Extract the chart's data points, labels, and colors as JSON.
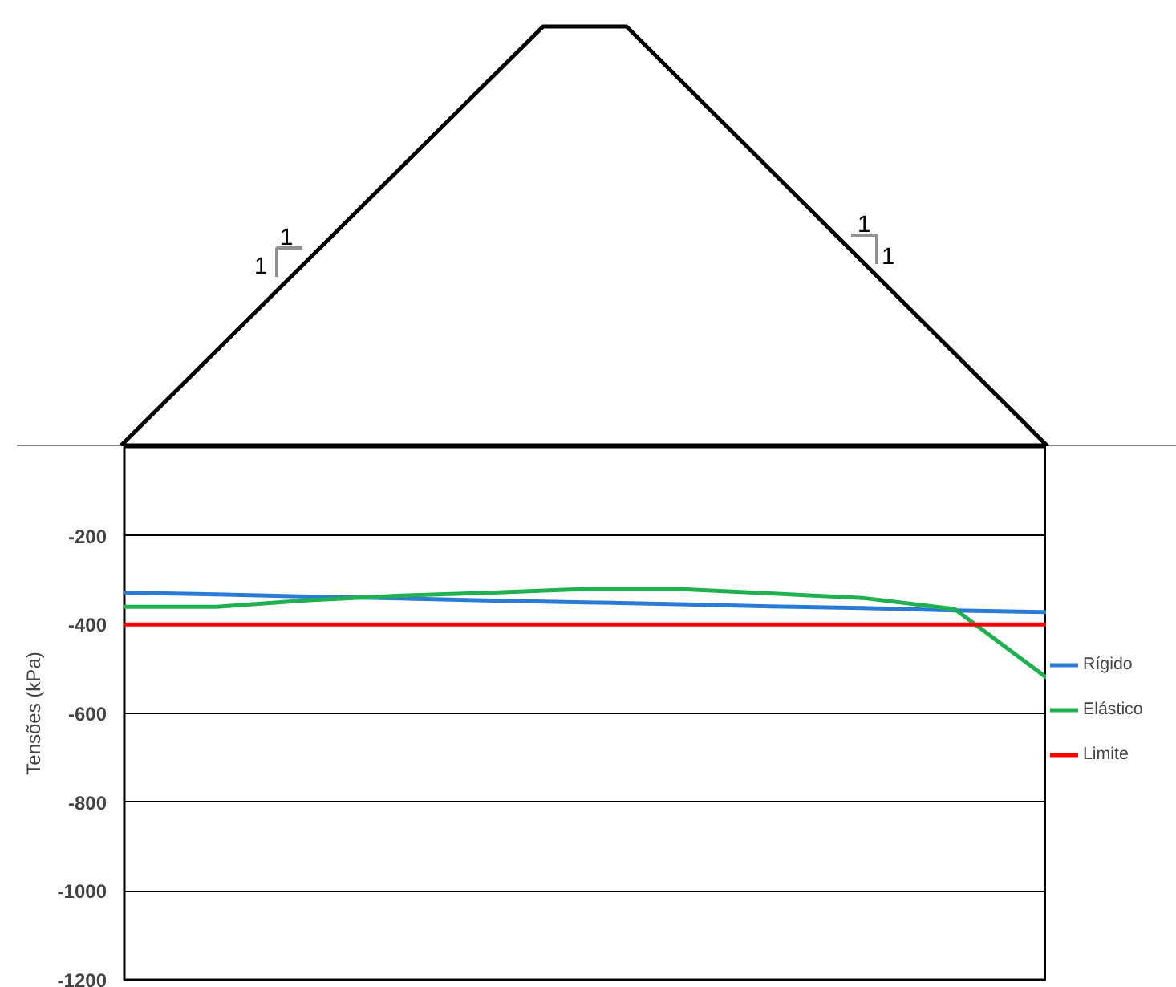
{
  "chart_data": {
    "type": "line",
    "ylabel": "Tensões (kPa)",
    "categories": [
      null,
      null,
      null,
      null,
      null,
      null,
      null,
      null,
      null,
      null,
      null
    ],
    "series": [
      {
        "name": "Rígido",
        "color": "#2b7bd6",
        "values": [
          -328,
          -332,
          -337,
          -341,
          -346,
          -350,
          -354,
          -359,
          -363,
          -368,
          -372
        ]
      },
      {
        "name": "Elástico",
        "color": "#1fb050",
        "values": [
          -360,
          -360,
          -345,
          -335,
          -328,
          -320,
          -320,
          -330,
          -340,
          -365,
          -520
        ]
      },
      {
        "name": "Limite",
        "color": "#ff0000",
        "values": [
          -400,
          -400,
          -400,
          -400,
          -400,
          -400,
          -400,
          -400,
          -400,
          -400,
          -400
        ]
      }
    ],
    "ylim": [
      -1200,
      0
    ],
    "yticks": [
      -200,
      -400,
      -600,
      -800,
      -1000,
      -1200
    ],
    "grid": "y",
    "legend": "right",
    "tick_labels": "y",
    "annotations": [
      "1",
      "1",
      "1",
      "1"
    ]
  }
}
